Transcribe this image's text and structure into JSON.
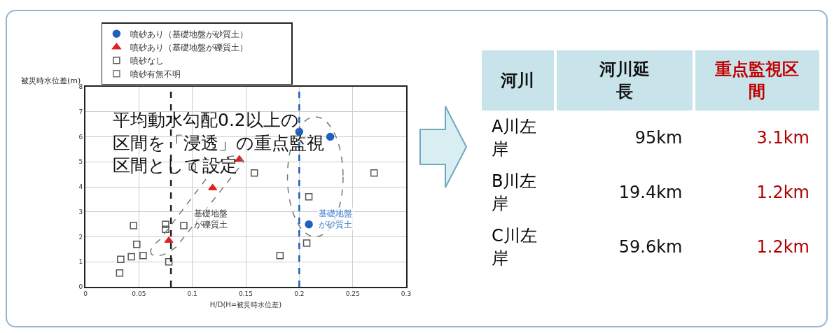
{
  "chart_data": [
    {
      "type": "scatter",
      "xlabel": "H/D(H=被災時水位差)",
      "ylabel": "被災時水位差(m)",
      "xlim": [
        0,
        0.3
      ],
      "ylim": [
        0,
        8
      ],
      "xticks": [
        0,
        0.05,
        0.1,
        0.15,
        0.2,
        0.25,
        0.3
      ],
      "yticks": [
        0,
        1,
        2,
        3,
        4,
        5,
        6,
        7,
        8
      ],
      "grid": true,
      "legend": "top",
      "series": [
        {
          "name": "噴砂あり（基礎地盤が砂質土）",
          "color": "#1f5fbf",
          "marker": "circle",
          "x": [
            0.2,
            0.229,
            0.209
          ],
          "values": [
            6.2,
            6.0,
            2.5
          ]
        },
        {
          "name": "噴砂あり（基礎地盤が礫質土）",
          "color": "#e02020",
          "marker": "triangle",
          "x": [
            0.078,
            0.119,
            0.144
          ],
          "values": [
            1.85,
            3.95,
            5.1
          ]
        },
        {
          "name": "噴砂なし",
          "color": "#555555",
          "marker": "square",
          "x": [
            0.032,
            0.033,
            0.043,
            0.054,
            0.048,
            0.045,
            0.075,
            0.075,
            0.092,
            0.078,
            0.158,
            0.209,
            0.207,
            0.182,
            0.27
          ],
          "values": [
            0.55,
            1.1,
            1.2,
            1.25,
            1.7,
            2.45,
            2.3,
            2.5,
            2.45,
            1.0,
            4.55,
            3.6,
            1.75,
            1.25,
            4.55
          ]
        },
        {
          "name": "噴砂有無不明",
          "color": "#777777",
          "marker": "square",
          "x": [
            0.1
          ],
          "values": [
            4.8
          ]
        }
      ],
      "ref_lines": [
        {
          "axis": "x",
          "value": 0.08,
          "color": "#222222",
          "line_style": "dashed"
        },
        {
          "axis": "x",
          "value": 0.2,
          "color": "#1f5fbf",
          "line_style": "dashed"
        }
      ],
      "annotations": [
        "平均動水勾配0.2以上の区間を「浸透」の重点監視区間として設定",
        "基礎地盤が礫質土",
        "基礎地盤が砂質土"
      ]
    },
    {
      "type": "other",
      "categories": [
        "河川",
        "河川延長",
        "重点監視区間"
      ],
      "y_categories": [
        "A川左岸",
        "B川左岸",
        "C川左岸"
      ],
      "cell_labels": [
        [
          "95km",
          "3.1km"
        ],
        [
          "19.4km",
          "1.2km"
        ],
        [
          "59.6km",
          "1.2km"
        ]
      ]
    }
  ]
}
